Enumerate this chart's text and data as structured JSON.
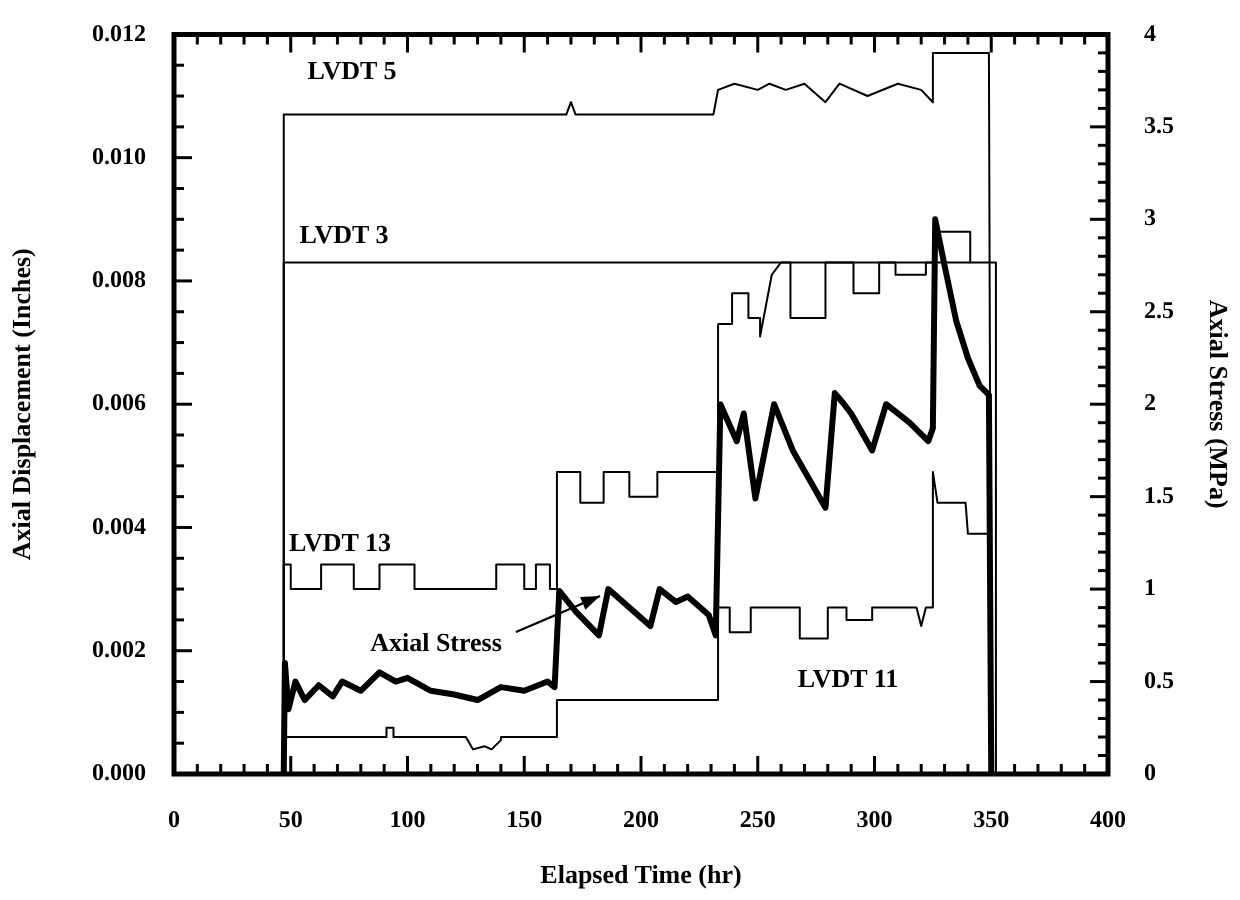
{
  "chart_data": {
    "type": "line",
    "xlabel": "Elapsed Time (hr)",
    "ylabel": "Axial Displacement (Inches)",
    "y2label": "Axial Stress (MPa)",
    "xlim": [
      0,
      400
    ],
    "xticks": [
      0,
      {
        "value": 10,
        "label": null
      },
      {
        "value": 20,
        "label": null
      },
      {
        "value": 30,
        "label": null
      },
      {
        "value": 40,
        "label": null
      },
      50,
      {
        "value": 60,
        "label": null
      },
      {
        "value": 70,
        "label": null
      },
      {
        "value": 80,
        "label": null
      },
      {
        "value": 90,
        "label": null
      },
      100,
      {
        "value": 110,
        "label": null
      },
      {
        "value": 120,
        "label": null
      },
      {
        "value": 130,
        "label": null
      },
      {
        "value": 140,
        "label": null
      },
      150,
      {
        "value": 160,
        "label": null
      },
      {
        "value": 170,
        "label": null
      },
      {
        "value": 180,
        "label": null
      },
      {
        "value": 190,
        "label": null
      },
      200,
      {
        "value": 210,
        "label": null
      },
      {
        "value": 220,
        "label": null
      },
      {
        "value": 230,
        "label": null
      },
      {
        "value": 240,
        "label": null
      },
      250,
      {
        "value": 260,
        "label": null
      },
      {
        "value": 270,
        "label": null
      },
      {
        "value": 280,
        "label": null
      },
      {
        "value": 290,
        "label": null
      },
      300,
      {
        "value": 310,
        "label": null
      },
      {
        "value": 320,
        "label": null
      },
      {
        "value": 330,
        "label": null
      },
      {
        "value": 340,
        "label": null
      },
      350,
      {
        "value": 360,
        "label": null
      },
      {
        "value": 370,
        "label": null
      },
      {
        "value": 380,
        "label": null
      },
      {
        "value": 390,
        "label": null
      },
      400
    ],
    "ylim": [
      0,
      0.012
    ],
    "yticks": [
      {
        "value": 0,
        "label": "0.000"
      },
      {
        "value": 0.0005,
        "label": null
      },
      {
        "value": 0.001,
        "label": null
      },
      {
        "value": 0.0015,
        "label": null
      },
      {
        "value": 0.002,
        "label": "0.002"
      },
      {
        "value": 0.0025,
        "label": null
      },
      {
        "value": 0.003,
        "label": null
      },
      {
        "value": 0.0035,
        "label": null
      },
      {
        "value": 0.004,
        "label": "0.004"
      },
      {
        "value": 0.0045,
        "label": null
      },
      {
        "value": 0.005,
        "label": null
      },
      {
        "value": 0.0055,
        "label": null
      },
      {
        "value": 0.006,
        "label": "0.006"
      },
      {
        "value": 0.0065,
        "label": null
      },
      {
        "value": 0.007,
        "label": null
      },
      {
        "value": 0.0075,
        "label": null
      },
      {
        "value": 0.008,
        "label": "0.008"
      },
      {
        "value": 0.0085,
        "label": null
      },
      {
        "value": 0.009,
        "label": null
      },
      {
        "value": 0.0095,
        "label": null
      },
      {
        "value": 0.01,
        "label": "0.010"
      },
      {
        "value": 0.0105,
        "label": null
      },
      {
        "value": 0.011,
        "label": null
      },
      {
        "value": 0.0115,
        "label": null
      },
      {
        "value": 0.012,
        "label": "0.012"
      }
    ],
    "y2lim": [
      0,
      4
    ],
    "y2ticks": [
      0,
      {
        "value": 0.1,
        "label": null
      },
      {
        "value": 0.2,
        "label": null
      },
      {
        "value": 0.3,
        "label": null
      },
      {
        "value": 0.4,
        "label": null
      },
      0.5,
      {
        "value": 0.6,
        "label": null
      },
      {
        "value": 0.7,
        "label": null
      },
      {
        "value": 0.8,
        "label": null
      },
      {
        "value": 0.9,
        "label": null
      },
      1,
      {
        "value": 1.1,
        "label": null
      },
      {
        "value": 1.2,
        "label": null
      },
      {
        "value": 1.3,
        "label": null
      },
      {
        "value": 1.4,
        "label": null
      },
      1.5,
      {
        "value": 1.6,
        "label": null
      },
      {
        "value": 1.7,
        "label": null
      },
      {
        "value": 1.8,
        "label": null
      },
      {
        "value": 1.9,
        "label": null
      },
      2,
      {
        "value": 2.1,
        "label": null
      },
      {
        "value": 2.2,
        "label": null
      },
      {
        "value": 2.3,
        "label": null
      },
      {
        "value": 2.4,
        "label": null
      },
      2.5,
      {
        "value": 2.6,
        "label": null
      },
      {
        "value": 2.7,
        "label": null
      },
      {
        "value": 2.8,
        "label": null
      },
      {
        "value": 2.9,
        "label": null
      },
      3,
      {
        "value": 3.1,
        "label": null
      },
      {
        "value": 3.2,
        "label": null
      },
      {
        "value": 3.3,
        "label": null
      },
      {
        "value": 3.4,
        "label": null
      },
      3.5,
      {
        "value": 3.6,
        "label": null
      },
      {
        "value": 3.7,
        "label": null
      },
      {
        "value": 3.8,
        "label": null
      },
      {
        "value": 3.9,
        "label": null
      },
      4
    ],
    "series": [
      {
        "name": "LVDT 5",
        "color": "#000000",
        "x": [
          47,
          47,
          168,
          170,
          172,
          231,
          233,
          240,
          250,
          255,
          262,
          270,
          279,
          285,
          297,
          310,
          320,
          325,
          325,
          349,
          350
        ],
        "values": [
          0,
          0.0107,
          0.0107,
          0.0109,
          0.0107,
          0.0107,
          0.0111,
          0.0112,
          0.0111,
          0.0112,
          0.0111,
          0.0112,
          0.0109,
          0.0112,
          0.011,
          0.0112,
          0.0111,
          0.0109,
          0.0117,
          0.0117,
          0
        ]
      },
      {
        "name": "LVDT 3",
        "color": "#000000",
        "x": [
          47,
          47,
          352,
          352
        ],
        "values": [
          0,
          0.0083,
          0.0083,
          0
        ]
      },
      {
        "name": "LVDT 13",
        "color": "#000000",
        "x": [
          47,
          47,
          50,
          50,
          63,
          63,
          77,
          77,
          88,
          88,
          103,
          103,
          138,
          138,
          150,
          150,
          155,
          155,
          161,
          161,
          164,
          164,
          174,
          174,
          184,
          184,
          195,
          195,
          207,
          207,
          233,
          233,
          239,
          239,
          246,
          246,
          251,
          251,
          256,
          260,
          264,
          264,
          279,
          279,
          291,
          291,
          302,
          302,
          309,
          309,
          322,
          322,
          326,
          326,
          341,
          341
        ],
        "values": [
          0,
          0.0034,
          0.0034,
          0.003,
          0.003,
          0.0034,
          0.0034,
          0.003,
          0.003,
          0.0034,
          0.0034,
          0.003,
          0.003,
          0.0034,
          0.0034,
          0.003,
          0.003,
          0.0034,
          0.0034,
          0.003,
          0.003,
          0.0049,
          0.0049,
          0.0044,
          0.0044,
          0.0049,
          0.0049,
          0.0045,
          0.0045,
          0.0049,
          0.0049,
          0.0073,
          0.0073,
          0.0078,
          0.0078,
          0.0074,
          0.0074,
          0.0071,
          0.0081,
          0.0083,
          0.0083,
          0.0074,
          0.0074,
          0.0083,
          0.0083,
          0.0078,
          0.0078,
          0.0083,
          0.0083,
          0.0081,
          0.0081,
          0.0083,
          0.0083,
          0.0088,
          0.0088,
          0.0083
        ]
      },
      {
        "name": "LVDT 11",
        "color": "#000000",
        "x": [
          47,
          47,
          91,
          91,
          94,
          94,
          125,
          128,
          133,
          136,
          140,
          140,
          164,
          164,
          233,
          233,
          238,
          238,
          247,
          247,
          268,
          268,
          280,
          280,
          288,
          288,
          299,
          299,
          318,
          320,
          322,
          325,
          325,
          327,
          339,
          340,
          349,
          350
        ],
        "values": [
          0,
          0.0006,
          0.0006,
          0.00075,
          0.00075,
          0.0006,
          0.0006,
          0.0004,
          0.00045,
          0.0004,
          0.00055,
          0.0006,
          0.0006,
          0.0012,
          0.0012,
          0.0027,
          0.0027,
          0.0023,
          0.0023,
          0.0027,
          0.0027,
          0.0022,
          0.0022,
          0.0027,
          0.0027,
          0.0025,
          0.0025,
          0.0027,
          0.0027,
          0.0024,
          0.0027,
          0.0027,
          0.0049,
          0.0044,
          0.0044,
          0.0039,
          0.0039,
          0
        ]
      },
      {
        "name": "Axial Stress",
        "color": "#000000",
        "axis": "y2",
        "x": [
          47,
          47.5,
          49,
          52,
          56,
          62,
          68,
          72,
          80,
          88,
          95,
          100,
          110,
          120,
          130,
          140,
          150,
          160,
          163,
          165,
          172,
          182,
          186,
          195,
          204,
          208,
          215,
          220,
          229,
          232,
          234,
          241,
          244,
          249,
          257,
          265,
          279,
          283,
          287,
          290,
          299,
          305,
          315,
          323,
          325,
          326,
          330,
          335,
          340,
          345,
          349,
          350
        ],
        "values": [
          0,
          0.6,
          0.35,
          0.5,
          0.4,
          0.48,
          0.42,
          0.5,
          0.45,
          0.55,
          0.5,
          0.52,
          0.45,
          0.43,
          0.4,
          0.47,
          0.45,
          0.5,
          0.47,
          0.99,
          0.88,
          0.75,
          1,
          0.9,
          0.8,
          1,
          0.93,
          0.96,
          0.86,
          0.75,
          2,
          1.8,
          1.95,
          1.49,
          2,
          1.75,
          1.44,
          2.06,
          2,
          1.95,
          1.75,
          2,
          1.9,
          1.8,
          1.87,
          3,
          2.75,
          2.45,
          2.25,
          2.1,
          2.05,
          0
        ]
      }
    ]
  }
}
